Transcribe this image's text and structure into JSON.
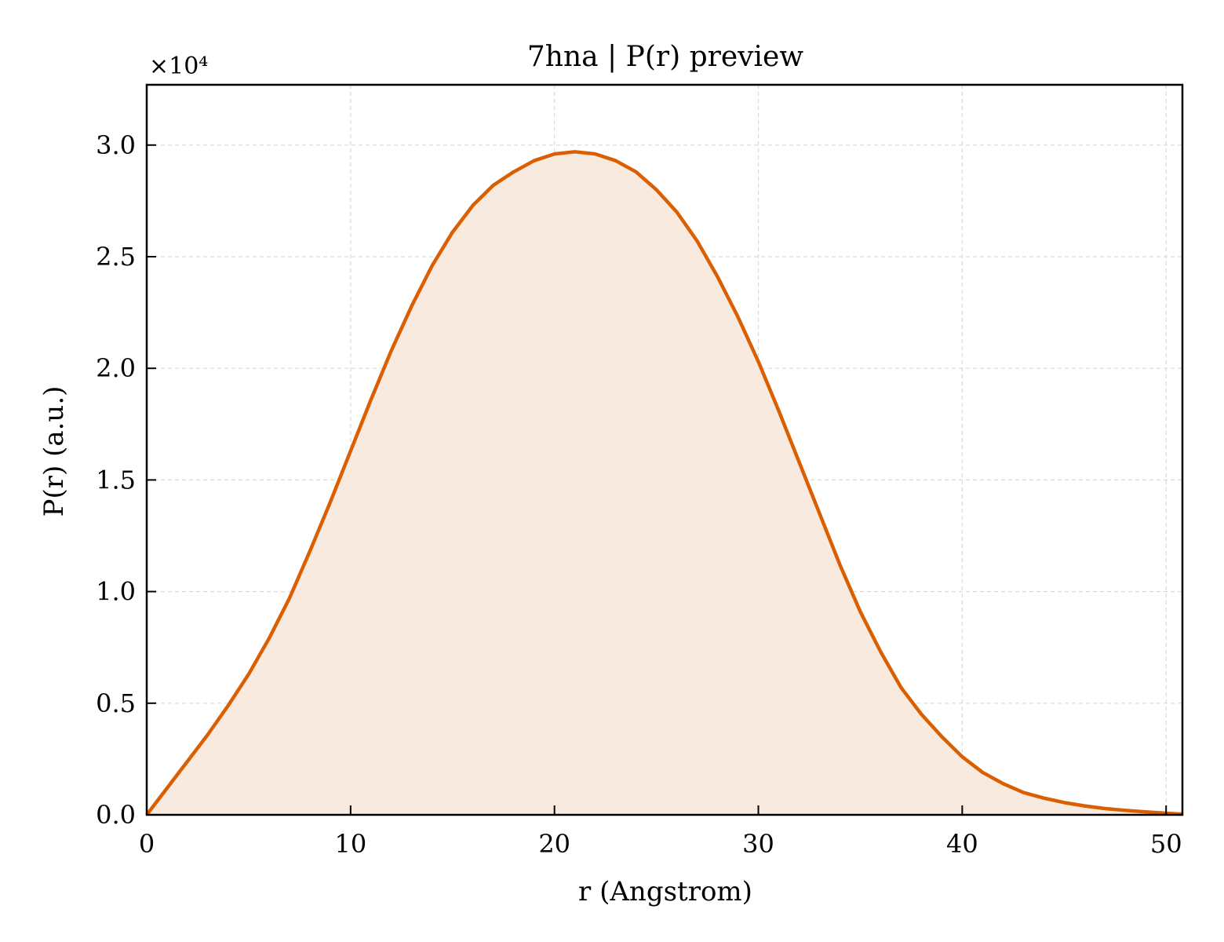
{
  "chart_data": {
    "type": "area",
    "title": "7hna | P(r) preview",
    "xlabel": "r (Angstrom)",
    "ylabel": "P(r) (a.u.)",
    "y_multiplier_label": "×10⁴",
    "xlim": [
      0,
      50.8
    ],
    "ylim": [
      0,
      3.27
    ],
    "y_scale_factor": 10000,
    "x_ticks": [
      0,
      10,
      20,
      30,
      40,
      50
    ],
    "x_tick_labels": [
      "0",
      "10",
      "20",
      "30",
      "40",
      "50"
    ],
    "y_ticks": [
      0.0,
      0.5,
      1.0,
      1.5,
      2.0,
      2.5,
      3.0
    ],
    "y_tick_labels": [
      "0.0",
      "0.5",
      "1.0",
      "1.5",
      "2.0",
      "2.5",
      "3.0"
    ],
    "grid": true,
    "legend": "none",
    "colors": {
      "line": "#d95f02",
      "fill": "#f9eadf",
      "grid": "#d9d9d9"
    },
    "series": [
      {
        "x": [
          0,
          1,
          2,
          3,
          4,
          5,
          6,
          7,
          8,
          9,
          10,
          11,
          12,
          13,
          14,
          15,
          16,
          17,
          18,
          19,
          20,
          21,
          22,
          23,
          24,
          25,
          26,
          27,
          28,
          29,
          30,
          31,
          32,
          33,
          34,
          35,
          36,
          37,
          38,
          39,
          40,
          41,
          42,
          43,
          44,
          45,
          46,
          47,
          48,
          49,
          50,
          50.8
        ],
        "y": [
          0.0,
          0.12,
          0.24,
          0.36,
          0.49,
          0.63,
          0.79,
          0.97,
          1.18,
          1.4,
          1.63,
          1.86,
          2.08,
          2.28,
          2.46,
          2.61,
          2.73,
          2.82,
          2.88,
          2.93,
          2.96,
          2.97,
          2.96,
          2.93,
          2.88,
          2.8,
          2.7,
          2.57,
          2.41,
          2.23,
          2.03,
          1.81,
          1.58,
          1.35,
          1.12,
          0.91,
          0.73,
          0.57,
          0.45,
          0.35,
          0.26,
          0.19,
          0.14,
          0.1,
          0.075,
          0.055,
          0.04,
          0.028,
          0.02,
          0.013,
          0.007,
          0.003
        ]
      }
    ]
  }
}
